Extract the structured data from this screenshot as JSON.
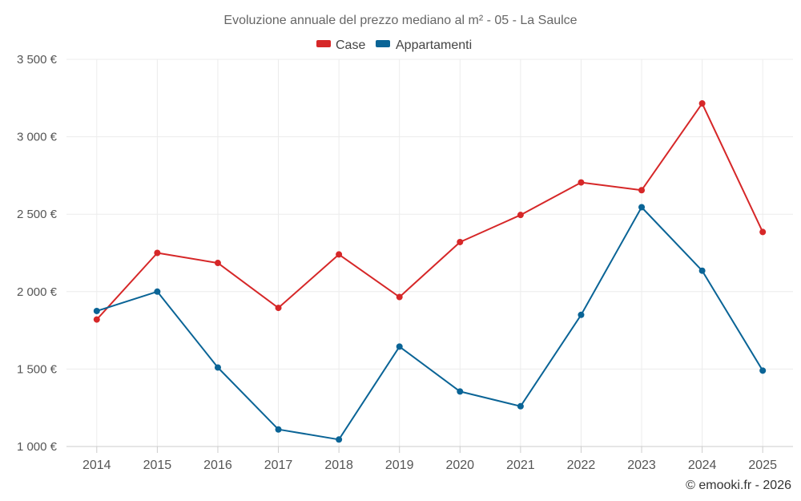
{
  "chart_data": {
    "type": "line",
    "title": "Evoluzione annuale del prezzo mediano al m² - 05 - La Saulce",
    "categories": [
      "2014",
      "2015",
      "2016",
      "2017",
      "2018",
      "2019",
      "2020",
      "2021",
      "2022",
      "2023",
      "2024",
      "2025"
    ],
    "series": [
      {
        "name": "Case",
        "color": "#d62728",
        "values": [
          1820,
          2250,
          2185,
          1895,
          2240,
          1965,
          2320,
          2495,
          2705,
          2655,
          3215,
          2385
        ]
      },
      {
        "name": "Appartamenti",
        "color": "#0a6496",
        "values": [
          1875,
          2000,
          1510,
          1110,
          1045,
          1645,
          1355,
          1260,
          1850,
          2545,
          2135,
          1490
        ]
      }
    ],
    "y_ticks": [
      {
        "value": 1000,
        "label": "1 000 €"
      },
      {
        "value": 1500,
        "label": "1 500 €"
      },
      {
        "value": 2000,
        "label": "2 000 €"
      },
      {
        "value": 2500,
        "label": "2 500 €"
      },
      {
        "value": 3000,
        "label": "3 000 €"
      },
      {
        "value": 3500,
        "label": "3 500 €"
      }
    ],
    "ylim": [
      1000,
      3500
    ],
    "xlabel": "",
    "ylabel": "",
    "grid": true,
    "legend": "top-center"
  },
  "credit": "© emooki.fr - 2026"
}
